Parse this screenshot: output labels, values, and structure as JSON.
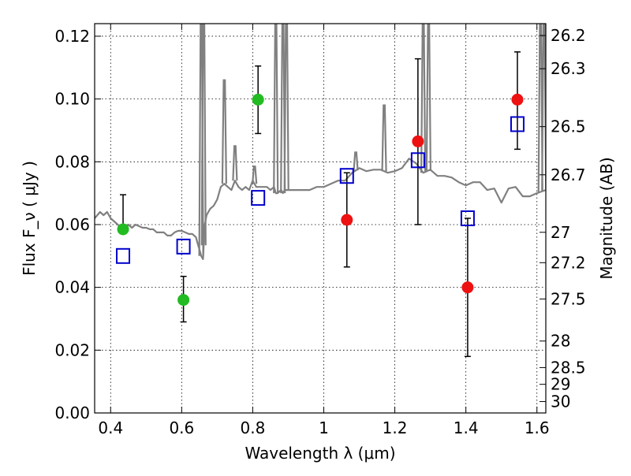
{
  "chart_data": {
    "type": "scatter",
    "xlabel": "Wavelength λ (μm)",
    "ylabel": "Flux F_ν ( μJy )",
    "y2label": "Magnitude (AB)",
    "xlim": [
      0.355,
      1.625
    ],
    "ylim": [
      0.0,
      0.124
    ],
    "grid": true,
    "legend": "none",
    "colors": {
      "spectrum": "#808080",
      "green": "#22bb22",
      "red": "#ee1111",
      "model": "#0000cc",
      "errorbar": "#000000"
    },
    "x_ticks": [
      {
        "value": 0.4,
        "label": "0.4"
      },
      {
        "value": 0.6,
        "label": "0.6"
      },
      {
        "value": 0.8,
        "label": "0.8"
      },
      {
        "value": 1.0,
        "label": "1"
      },
      {
        "value": 1.2,
        "label": "1.2"
      },
      {
        "value": 1.4,
        "label": "1.4"
      },
      {
        "value": 1.6,
        "label": "1.6"
      }
    ],
    "y_ticks": [
      {
        "value": 0.0,
        "label": "0.00"
      },
      {
        "value": 0.02,
        "label": "0.02"
      },
      {
        "value": 0.04,
        "label": "0.04"
      },
      {
        "value": 0.06,
        "label": "0.06"
      },
      {
        "value": 0.08,
        "label": "0.08"
      },
      {
        "value": 0.1,
        "label": "0.10"
      },
      {
        "value": 0.12,
        "label": "0.12"
      }
    ],
    "y2_ticks": [
      {
        "mag": 26.2,
        "label": "26.2"
      },
      {
        "mag": 26.3,
        "label": "26.3"
      },
      {
        "mag": 26.5,
        "label": "26.5"
      },
      {
        "mag": 26.7,
        "label": "26.7"
      },
      {
        "mag": 27,
        "label": "27"
      },
      {
        "mag": 27.2,
        "label": "27.2"
      },
      {
        "mag": 27.5,
        "label": "27.5"
      },
      {
        "mag": 28,
        "label": "28"
      },
      {
        "mag": 28.5,
        "label": "28.5"
      },
      {
        "mag": 29,
        "label": "29"
      },
      {
        "mag": 30,
        "label": "30"
      }
    ],
    "spectrum": {
      "x": [
        0.355,
        0.37,
        0.38,
        0.39,
        0.4,
        0.41,
        0.42,
        0.43,
        0.44,
        0.45,
        0.46,
        0.47,
        0.48,
        0.49,
        0.5,
        0.51,
        0.52,
        0.53,
        0.54,
        0.55,
        0.56,
        0.57,
        0.58,
        0.59,
        0.6,
        0.61,
        0.62,
        0.63,
        0.64,
        0.645,
        0.65,
        0.655,
        0.66,
        0.665,
        0.67,
        0.68,
        0.69,
        0.7,
        0.71,
        0.72,
        0.73,
        0.74,
        0.75,
        0.76,
        0.77,
        0.78,
        0.79,
        0.8,
        0.81,
        0.82,
        0.83,
        0.84,
        0.85,
        0.86,
        0.865,
        0.87,
        0.88,
        0.885,
        0.89,
        0.9,
        0.92,
        0.94,
        0.96,
        0.98,
        1.0,
        1.02,
        1.04,
        1.06,
        1.08,
        1.1,
        1.12,
        1.14,
        1.16,
        1.18,
        1.2,
        1.22,
        1.24,
        1.26,
        1.28,
        1.3,
        1.32,
        1.34,
        1.36,
        1.38,
        1.4,
        1.42,
        1.44,
        1.46,
        1.48,
        1.5,
        1.52,
        1.54,
        1.56,
        1.58,
        1.6,
        1.625
      ],
      "y": [
        0.062,
        0.064,
        0.063,
        0.064,
        0.062,
        0.061,
        0.06,
        0.059,
        0.0585,
        0.06,
        0.059,
        0.06,
        0.0595,
        0.059,
        0.059,
        0.0585,
        0.0585,
        0.0575,
        0.0575,
        0.0575,
        0.0565,
        0.0565,
        0.0575,
        0.058,
        0.058,
        0.0575,
        0.057,
        0.057,
        0.056,
        0.054,
        0.052,
        0.05,
        0.049,
        0.06,
        0.063,
        0.065,
        0.066,
        0.068,
        0.072,
        0.073,
        0.072,
        0.071,
        0.074,
        0.072,
        0.071,
        0.072,
        0.071,
        0.074,
        0.072,
        0.072,
        0.072,
        0.072,
        0.071,
        0.072,
        0.07,
        0.07,
        0.071,
        0.07,
        0.071,
        0.071,
        0.071,
        0.071,
        0.071,
        0.072,
        0.072,
        0.073,
        0.074,
        0.074,
        0.0765,
        0.078,
        0.077,
        0.0775,
        0.0775,
        0.0765,
        0.077,
        0.078,
        0.081,
        0.0795,
        0.0765,
        0.0775,
        0.0755,
        0.0755,
        0.075,
        0.0735,
        0.0725,
        0.0735,
        0.0735,
        0.071,
        0.0715,
        0.067,
        0.0715,
        0.072,
        0.069,
        0.069,
        0.07,
        0.071
      ]
    },
    "emission_lines": [
      {
        "x": 0.655,
        "peak": 0.124
      },
      {
        "x": 0.662,
        "peak": 0.124
      },
      {
        "x": 0.72,
        "peak": 0.106
      },
      {
        "x": 0.75,
        "peak": 0.085
      },
      {
        "x": 0.805,
        "peak": 0.0785
      },
      {
        "x": 0.865,
        "peak": 0.124
      },
      {
        "x": 0.885,
        "peak": 0.124
      },
      {
        "x": 0.895,
        "peak": 0.124
      },
      {
        "x": 1.09,
        "peak": 0.083
      },
      {
        "x": 1.17,
        "peak": 0.098
      },
      {
        "x": 1.28,
        "peak": 0.124
      },
      {
        "x": 1.295,
        "peak": 0.124
      },
      {
        "x": 1.61,
        "peak": 0.124
      },
      {
        "x": 1.62,
        "peak": 0.124
      }
    ],
    "series": [
      {
        "marker": "circle",
        "color": "#22bb22",
        "points": [
          {
            "x": 0.435,
            "y": 0.0585,
            "yerr_low": 0.0585,
            "yerr_high": 0.0695
          },
          {
            "x": 0.605,
            "y": 0.036,
            "yerr_low": 0.029,
            "yerr_high": 0.0435
          },
          {
            "x": 0.815,
            "y": 0.0998,
            "yerr_low": 0.089,
            "yerr_high": 0.1105
          }
        ]
      },
      {
        "marker": "circle",
        "color": "#ee1111",
        "points": [
          {
            "x": 1.065,
            "y": 0.0615,
            "yerr_low": 0.0465,
            "yerr_high": 0.0765
          },
          {
            "x": 1.265,
            "y": 0.0865,
            "yerr_low": 0.06,
            "yerr_high": 0.1128
          },
          {
            "x": 1.405,
            "y": 0.04,
            "yerr_low": 0.018,
            "yerr_high": 0.062
          },
          {
            "x": 1.545,
            "y": 0.0998,
            "yerr_low": 0.084,
            "yerr_high": 0.115
          }
        ]
      },
      {
        "marker": "open-square",
        "color": "#0000cc",
        "points": [
          {
            "x": 0.435,
            "y": 0.05
          },
          {
            "x": 0.605,
            "y": 0.053
          },
          {
            "x": 0.815,
            "y": 0.0685
          },
          {
            "x": 1.065,
            "y": 0.0755
          },
          {
            "x": 1.265,
            "y": 0.0805
          },
          {
            "x": 1.405,
            "y": 0.062
          },
          {
            "x": 1.545,
            "y": 0.092
          }
        ]
      }
    ]
  }
}
